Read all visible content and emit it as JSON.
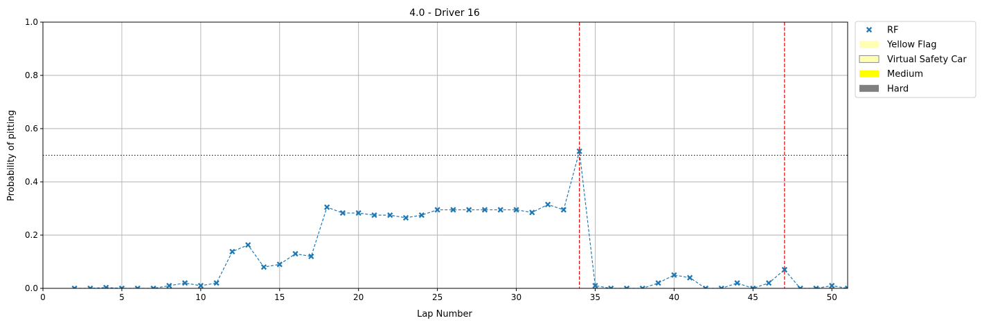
{
  "chart_data": {
    "type": "scatter",
    "title": "4.0 - Driver 16",
    "xlabel": "Lap Number",
    "ylabel": "Probability of pitting",
    "xlim": [
      0,
      51
    ],
    "ylim": [
      0,
      1.0
    ],
    "x_ticks": [
      0,
      5,
      10,
      15,
      20,
      25,
      30,
      35,
      40,
      45,
      50
    ],
    "y_ticks": [
      0.0,
      0.2,
      0.4,
      0.6,
      0.8,
      1.0
    ],
    "x_tick_labels": [
      "0",
      "5",
      "10",
      "15",
      "20",
      "25",
      "30",
      "35",
      "40",
      "45",
      "50"
    ],
    "y_tick_labels": [
      "0.0",
      "0.2",
      "0.4",
      "0.6",
      "0.8",
      "1.0"
    ],
    "grid": true,
    "legend_position": "outside-top-right",
    "threshold": 0.5,
    "pit_laps": [
      34,
      47
    ],
    "series": [
      {
        "name": "RF",
        "color": "#1f77b4",
        "marker": "x",
        "line": "dashed",
        "x": [
          2,
          3,
          4,
          5,
          6,
          7,
          8,
          9,
          10,
          11,
          12,
          13,
          14,
          15,
          16,
          17,
          18,
          19,
          20,
          21,
          22,
          23,
          24,
          25,
          26,
          27,
          28,
          29,
          30,
          31,
          32,
          33,
          34,
          35,
          36,
          37,
          38,
          39,
          40,
          41,
          42,
          43,
          44,
          45,
          46,
          47,
          48,
          49,
          50,
          51
        ],
        "y": [
          0.0,
          0.0,
          0.003,
          0.0,
          0.0,
          0.0,
          0.01,
          0.02,
          0.01,
          0.02,
          0.138,
          0.163,
          0.08,
          0.09,
          0.13,
          0.12,
          0.305,
          0.283,
          0.283,
          0.275,
          0.275,
          0.265,
          0.275,
          0.295,
          0.295,
          0.295,
          0.295,
          0.295,
          0.295,
          0.285,
          0.315,
          0.295,
          0.515,
          0.01,
          0.0,
          0.0,
          0.0,
          0.02,
          0.05,
          0.04,
          0.0,
          0.0,
          0.02,
          0.0,
          0.02,
          0.07,
          0.0,
          0.0,
          0.01,
          0.0
        ]
      }
    ],
    "legend": [
      {
        "label": "RF",
        "kind": "marker",
        "color": "#1f77b4"
      },
      {
        "label": "Yellow Flag",
        "kind": "patch",
        "color": "#ffffb3",
        "edge": "none"
      },
      {
        "label": "Virtual Safety Car",
        "kind": "patch",
        "color": "#ffffb3",
        "edge": "#888888"
      },
      {
        "label": "Medium",
        "kind": "patch",
        "color": "#ffff00",
        "edge": "none"
      },
      {
        "label": "Hard",
        "kind": "patch",
        "color": "#808080",
        "edge": "none"
      }
    ],
    "colors": {
      "series": "#1f77b4",
      "pit_line": "#dd0000",
      "threshold_line": "#000000",
      "grid": "#b0b0b0"
    }
  }
}
